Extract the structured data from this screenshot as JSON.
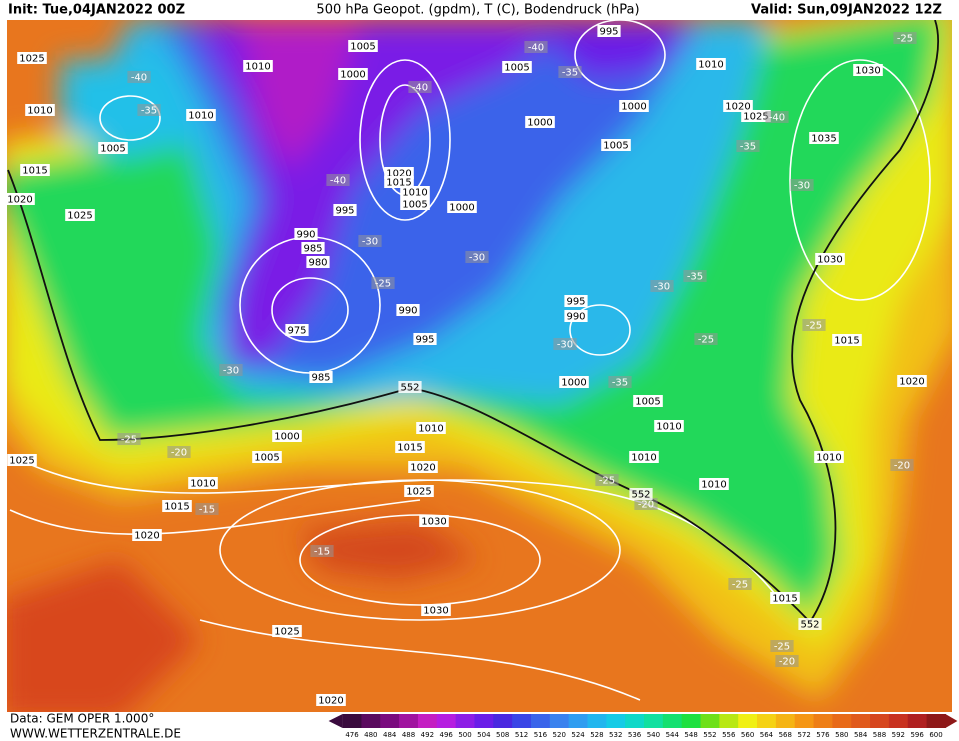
{
  "header": {
    "init": "Init: Tue,04JAN2022 00Z",
    "title": "500 hPa Geopot. (gpdm), T (C), Bodendruck (hPa)",
    "valid": "Valid: Sun,09JAN2022 12Z"
  },
  "footer": {
    "data": "Data: GEM OPER 1.000°",
    "site": "WWW.WETTERZENTRALE.DE"
  },
  "colorbar": {
    "levels": [
      476,
      480,
      484,
      488,
      492,
      496,
      500,
      504,
      508,
      512,
      516,
      520,
      524,
      528,
      532,
      536,
      540,
      544,
      548,
      552,
      556,
      560,
      564,
      568,
      572,
      576,
      580,
      584,
      588,
      592,
      596,
      600
    ],
    "colors": [
      "#3a0b3e",
      "#5a0a5e",
      "#7a0a7e",
      "#a0139f",
      "#c41ec2",
      "#b51ee0",
      "#8d1ee6",
      "#6a1ee8",
      "#4a28e0",
      "#3a45e6",
      "#3a64ea",
      "#3a82ee",
      "#2f9df0",
      "#22b6ee",
      "#16cbe6",
      "#10d8c8",
      "#12e0a0",
      "#14e070",
      "#1ee040",
      "#6ee01a",
      "#b8e814",
      "#f0f014",
      "#f5d214",
      "#f5b414",
      "#f59614",
      "#ee7e16",
      "#e86a18",
      "#e05a1c",
      "#d6461e",
      "#c83220",
      "#b02020",
      "#8e1818"
    ]
  },
  "map": {
    "isobar_labels": [
      "1005",
      "1025",
      "1010",
      "1000",
      "1005",
      "995",
      "1010",
      "1030",
      "1010",
      "1010",
      "1000",
      "1020",
      "1025",
      "1000",
      "1035",
      "1005",
      "1005",
      "1015",
      "1020",
      "1015",
      "1010",
      "1005",
      "1000",
      "1020",
      "1025",
      "995",
      "990",
      "985",
      "980",
      "1030",
      "995",
      "990",
      "990",
      "975",
      "995",
      "1015",
      "1020",
      "985",
      "1000",
      "1005",
      "1010",
      "1010",
      "1000",
      "1015",
      "1010",
      "1005",
      "1010",
      "1025",
      "1020",
      "1010",
      "1010",
      "1025",
      "1015",
      "1030",
      "1020",
      "1015",
      "1030",
      "1025",
      "1020"
    ],
    "temperature_labels": [
      "-40",
      "-35",
      "-40",
      "-40",
      "-35",
      "-40",
      "-35",
      "-30",
      "-40",
      "-30",
      "-30",
      "-25",
      "-35",
      "-30",
      "-25",
      "-30",
      "-30",
      "-25",
      "-35",
      "-25",
      "-20",
      "-20",
      "-25",
      "-20",
      "-15",
      "-15",
      "-25",
      "-25",
      "-20",
      "-25"
    ],
    "geopotential_labels": [
      "552",
      "552",
      "552"
    ]
  }
}
